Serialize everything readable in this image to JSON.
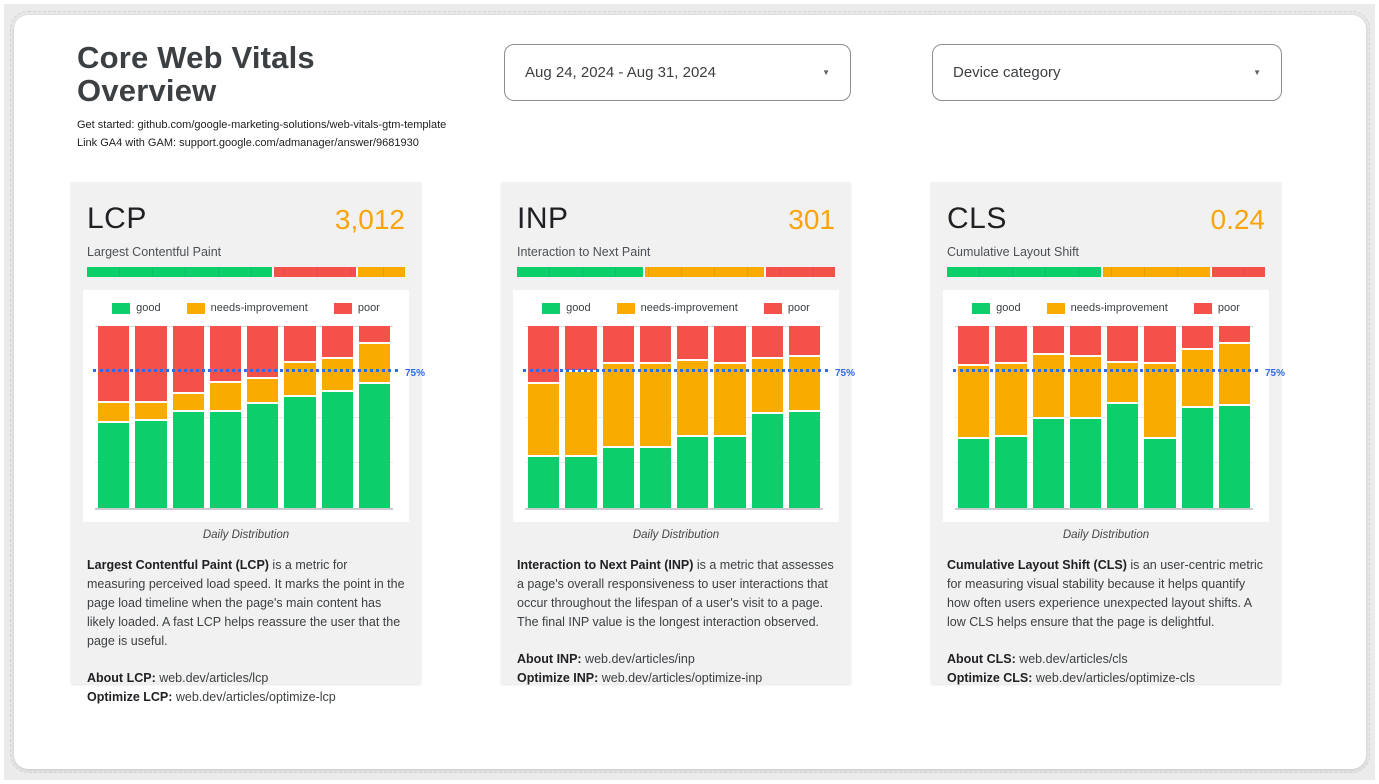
{
  "colors": {
    "good": "#0CCE6B",
    "needs_improvement": "#F9AB00",
    "poor": "#F4514A",
    "metric_value": "#FAA40B",
    "threshold_line": "#2E6BE6"
  },
  "header": {
    "title": "Core Web Vitals Overview",
    "link1": "Get started: github.com/google-marketing-solutions/web-vitals-gtm-template",
    "link2": "Link GA4 with GAM: support.google.com/admanager/answer/9681930"
  },
  "filters": {
    "date_range": {
      "value": "Aug 24, 2024 - Aug 31, 2024"
    },
    "device": {
      "value": "Device category"
    }
  },
  "legend": {
    "good": "good",
    "needs_improvement": "needs-improvement",
    "poor": "poor"
  },
  "cards": [
    {
      "metric": "LCP",
      "value": "3,012",
      "subtitle": "Largest Contentful Paint",
      "gauge": [
        {
          "status_key": "good",
          "pct": 59
        },
        {
          "status_key": "poor",
          "pct": 26
        },
        {
          "status_key": "needs_improvement",
          "pct": 15
        }
      ],
      "threshold_label": "75%",
      "chart_caption": "Daily Distribution",
      "description_bold": "Largest Contentful Paint (LCP)",
      "description_rest": " is a metric for measuring perceived load speed. It marks the point in the page load timeline when the page's main content has likely loaded. A fast LCP helps reassure the user that the page is useful.",
      "about_label": "About LCP:",
      "about_link": " web.dev/articles/lcp",
      "optimize_label": "Optimize LCP:",
      "optimize_link": " web.dev/articles/optimize-lcp"
    },
    {
      "metric": "INP",
      "value": "301",
      "subtitle": "Interaction to Next Paint",
      "gauge": [
        {
          "status_key": "good",
          "pct": 40
        },
        {
          "status_key": "needs_improvement",
          "pct": 38
        },
        {
          "status_key": "poor",
          "pct": 22
        }
      ],
      "threshold_label": "75%",
      "chart_caption": "Daily Distribution",
      "description_bold": "Interaction to Next Paint (INP)",
      "description_rest": " is a metric that assesses a page's overall responsiveness to user interactions that occur throughout the lifespan of a user's visit to a page. The final INP value is the longest interaction observed.",
      "about_label": "About INP:",
      "about_link": " web.dev/articles/inp",
      "optimize_label": "Optimize INP:",
      "optimize_link": " web.dev/articles/optimize-inp"
    },
    {
      "metric": "CLS",
      "value": "0.24",
      "subtitle": "Cumulative Layout Shift",
      "gauge": [
        {
          "status_key": "good",
          "pct": 49
        },
        {
          "status_key": "needs_improvement",
          "pct": 34
        },
        {
          "status_key": "poor",
          "pct": 17
        }
      ],
      "threshold_label": "75%",
      "chart_caption": "Daily Distribution",
      "description_bold": "Cumulative Layout Shift (CLS)",
      "description_rest": " is an user-centric metric for measuring visual stability because it helps quantify how often users experience unexpected layout shifts. A low CLS helps ensure that the page is delightful.",
      "about_label": "About CLS:",
      "about_link": " web.dev/articles/cls",
      "optimize_label": "Optimize CLS:",
      "optimize_link": " web.dev/articles/optimize-cls"
    }
  ],
  "chart_data": [
    {
      "metric": "LCP",
      "type": "bar",
      "stacked": true,
      "unit": "percent of page loads",
      "categories": [
        1,
        2,
        3,
        4,
        5,
        6,
        7,
        8
      ],
      "series": [
        {
          "name": "good",
          "values": [
            48,
            49,
            54,
            54,
            58,
            62,
            65,
            69
          ]
        },
        {
          "name": "needs-improvement",
          "values": [
            11,
            10,
            10,
            16,
            14,
            19,
            18,
            22
          ]
        },
        {
          "name": "poor",
          "values": [
            41,
            41,
            36,
            30,
            28,
            19,
            17,
            9
          ]
        }
      ],
      "ylim": [
        0,
        100
      ],
      "grid": true,
      "legend_position": "top",
      "threshold_line": {
        "value": 75,
        "label": "75%",
        "style": "dotted"
      },
      "caption": "Daily Distribution"
    },
    {
      "metric": "INP",
      "type": "bar",
      "stacked": true,
      "unit": "percent of page loads",
      "categories": [
        1,
        2,
        3,
        4,
        5,
        6,
        7,
        8
      ],
      "series": [
        {
          "name": "good",
          "values": [
            29,
            29,
            34,
            34,
            40,
            40,
            53,
            54
          ]
        },
        {
          "name": "needs-improvement",
          "values": [
            40,
            47,
            46,
            46,
            42,
            40,
            30,
            30
          ]
        },
        {
          "name": "poor",
          "values": [
            31,
            24,
            20,
            20,
            18,
            20,
            17,
            16
          ]
        }
      ],
      "ylim": [
        0,
        100
      ],
      "grid": true,
      "legend_position": "top",
      "threshold_line": {
        "value": 75,
        "label": "75%",
        "style": "dotted"
      },
      "caption": "Daily Distribution"
    },
    {
      "metric": "CLS",
      "type": "bar",
      "stacked": true,
      "unit": "percent of page loads",
      "categories": [
        1,
        2,
        3,
        4,
        5,
        6,
        7,
        8
      ],
      "series": [
        {
          "name": "good",
          "values": [
            39,
            40,
            50,
            50,
            58,
            39,
            56,
            57
          ]
        },
        {
          "name": "needs-improvement",
          "values": [
            40,
            40,
            35,
            34,
            23,
            41,
            32,
            34
          ]
        },
        {
          "name": "poor",
          "values": [
            21,
            20,
            15,
            16,
            19,
            20,
            12,
            9
          ]
        }
      ],
      "ylim": [
        0,
        100
      ],
      "grid": true,
      "legend_position": "top",
      "threshold_line": {
        "value": 75,
        "label": "75%",
        "style": "dotted"
      },
      "caption": "Daily Distribution"
    }
  ]
}
